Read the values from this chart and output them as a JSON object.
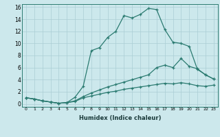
{
  "xlabel": "Humidex (Indice chaleur)",
  "xlim": [
    -0.5,
    23.5
  ],
  "ylim": [
    -0.5,
    16.5
  ],
  "yticks": [
    0,
    2,
    4,
    6,
    8,
    10,
    12,
    14,
    16
  ],
  "xticks": [
    0,
    1,
    2,
    3,
    4,
    5,
    6,
    7,
    8,
    9,
    10,
    11,
    12,
    13,
    14,
    15,
    16,
    17,
    18,
    19,
    20,
    21,
    22,
    23
  ],
  "bg_color": "#cce8ec",
  "line_color": "#2a7a70",
  "grid_color": "#aacdd4",
  "line1_x": [
    0,
    1,
    2,
    3,
    4,
    5,
    6,
    7,
    8,
    9,
    10,
    11,
    12,
    13,
    14,
    15,
    16,
    17,
    18,
    19,
    20,
    21,
    22,
    23
  ],
  "line1_y": [
    1.0,
    0.8,
    0.5,
    0.3,
    0.1,
    0.2,
    1.1,
    2.9,
    8.8,
    9.3,
    11.0,
    12.0,
    14.6,
    14.2,
    14.8,
    15.8,
    15.6,
    12.3,
    10.2,
    10.0,
    9.5,
    5.7,
    4.8,
    4.1
  ],
  "line2_x": [
    0,
    1,
    2,
    3,
    4,
    5,
    6,
    7,
    8,
    9,
    10,
    11,
    12,
    13,
    14,
    15,
    16,
    17,
    18,
    19,
    20,
    21,
    22,
    23
  ],
  "line2_y": [
    1.0,
    0.8,
    0.5,
    0.3,
    0.1,
    0.2,
    0.5,
    1.2,
    1.8,
    2.3,
    2.8,
    3.2,
    3.6,
    4.0,
    4.4,
    4.8,
    6.0,
    6.4,
    6.0,
    7.5,
    6.2,
    5.8,
    4.8,
    4.1
  ],
  "line3_x": [
    0,
    1,
    2,
    3,
    4,
    5,
    6,
    7,
    8,
    9,
    10,
    11,
    12,
    13,
    14,
    15,
    16,
    17,
    18,
    19,
    20,
    21,
    22,
    23
  ],
  "line3_y": [
    1.0,
    0.8,
    0.5,
    0.3,
    0.1,
    0.2,
    0.4,
    1.0,
    1.3,
    1.6,
    1.9,
    2.1,
    2.4,
    2.6,
    2.8,
    3.0,
    3.2,
    3.4,
    3.3,
    3.5,
    3.3,
    3.0,
    2.9,
    3.1
  ]
}
